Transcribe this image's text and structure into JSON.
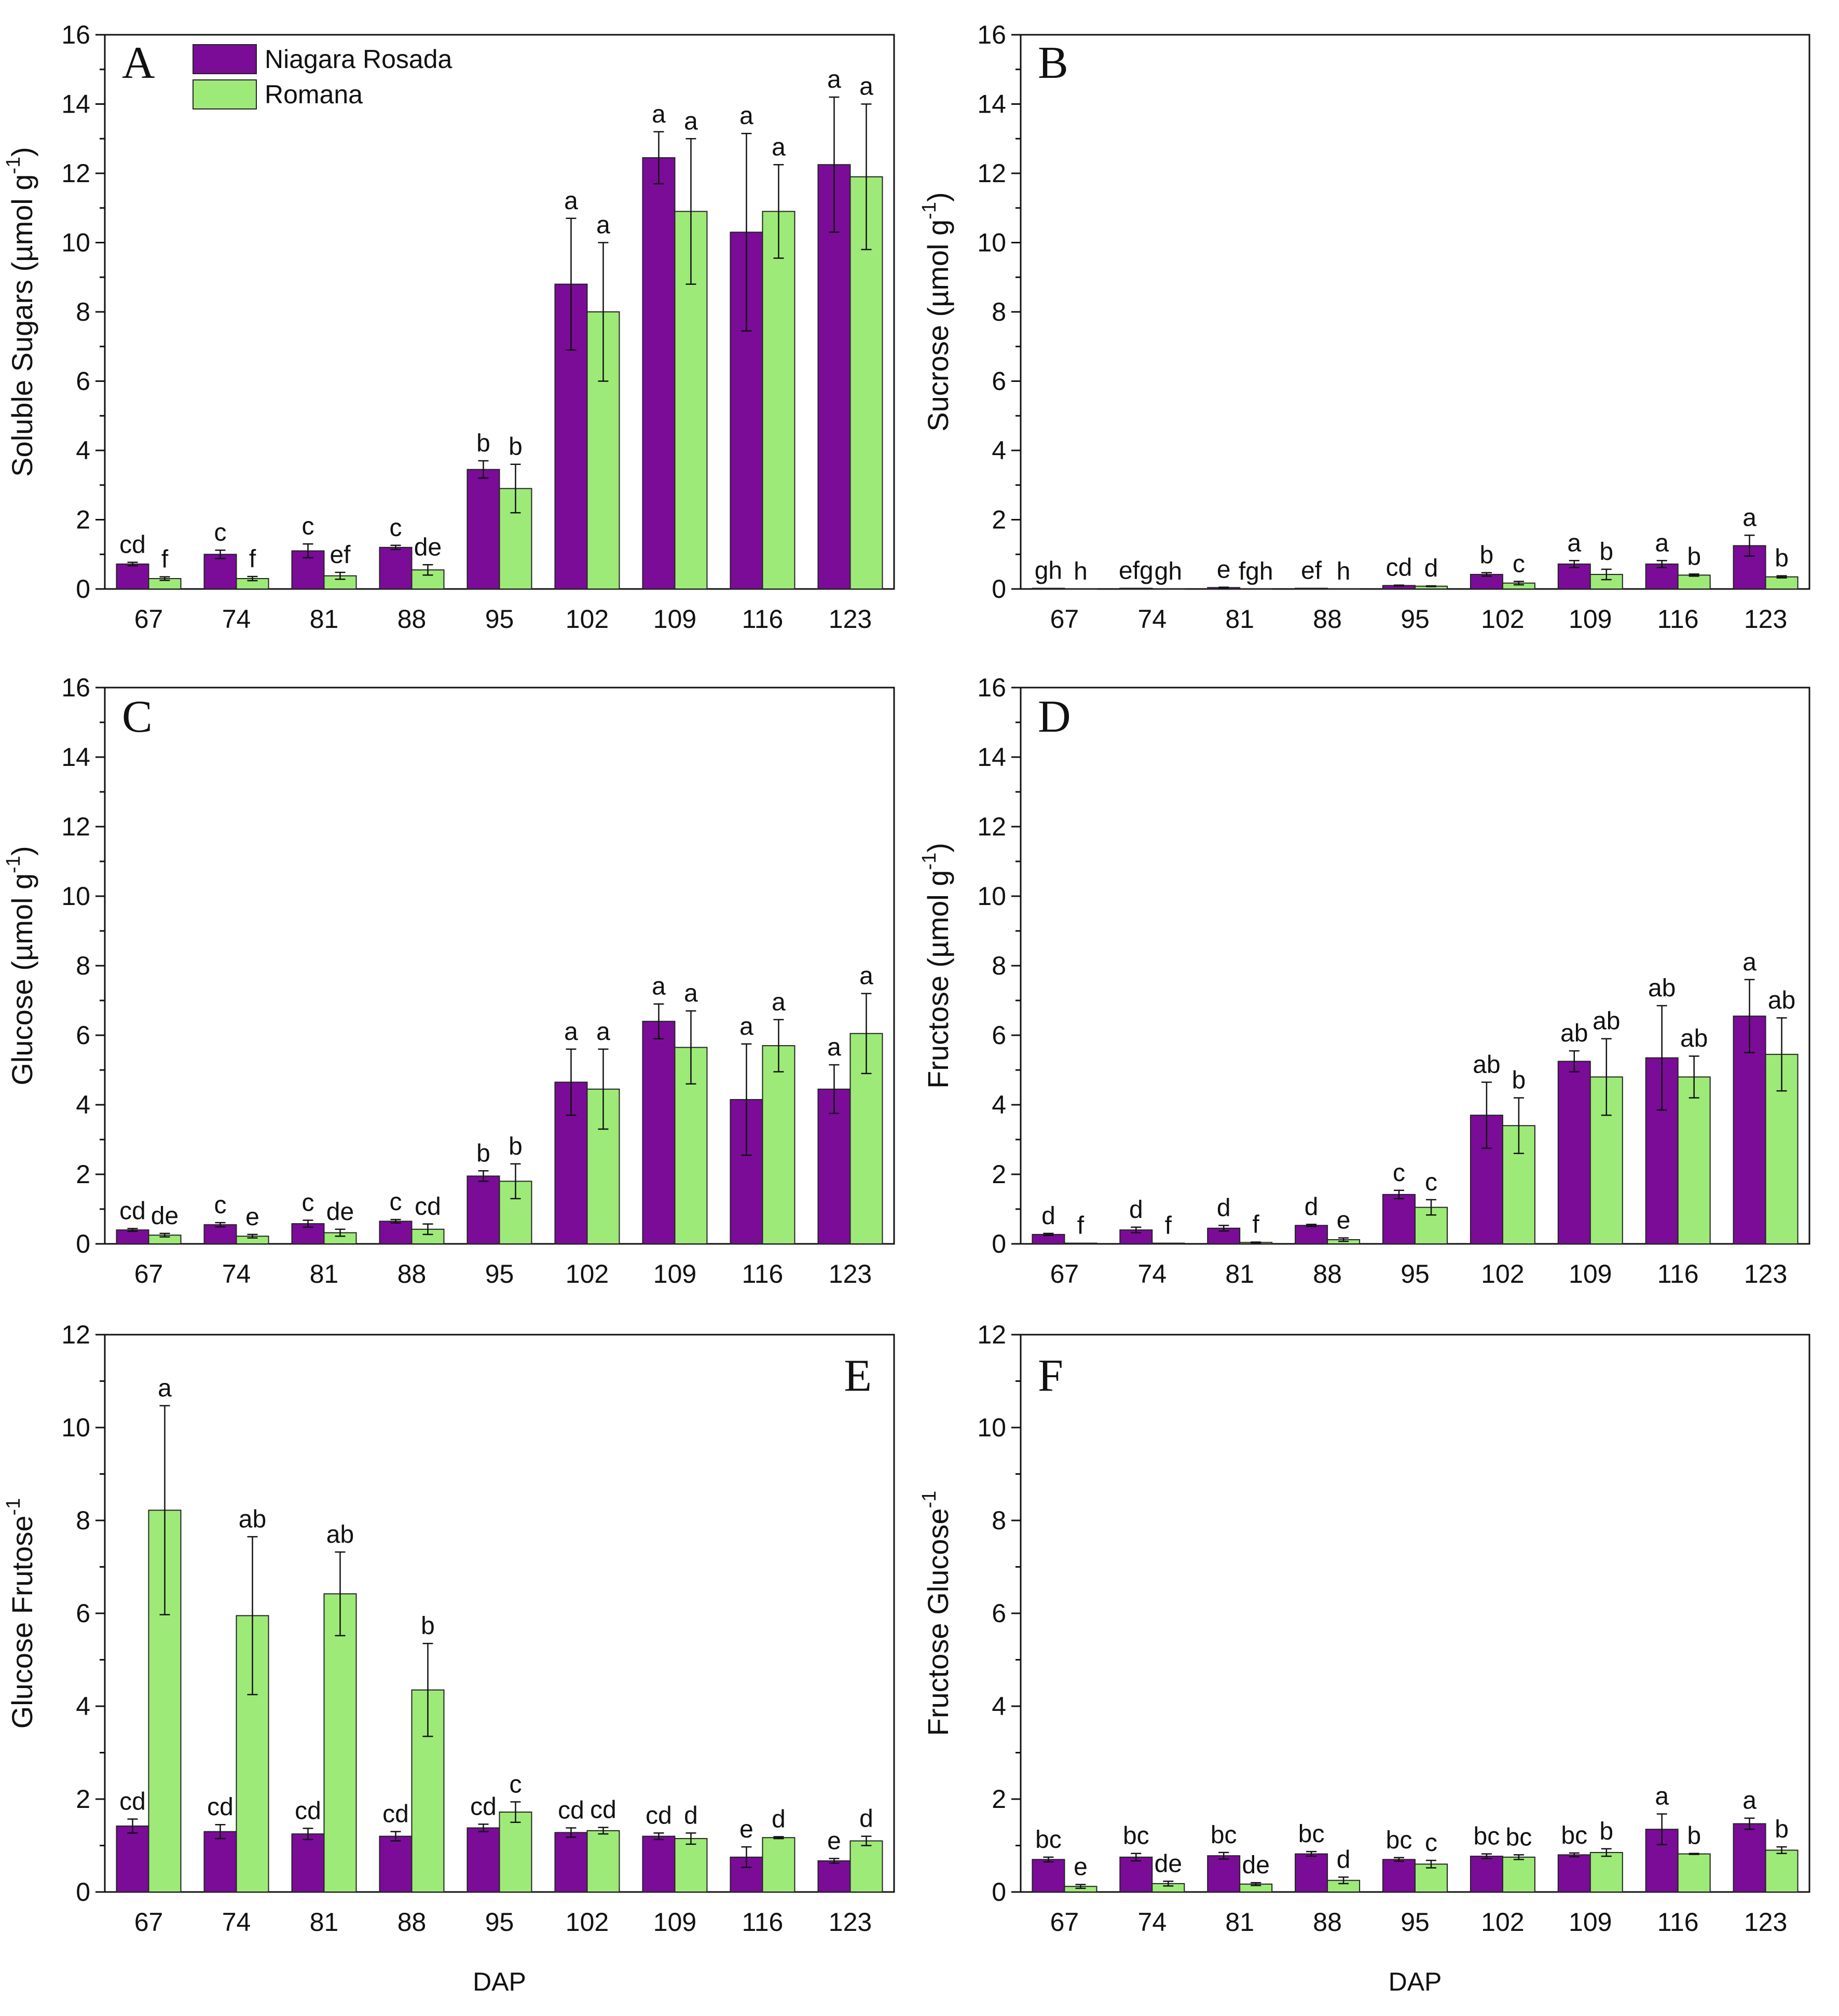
{
  "colors": {
    "Niagara Rosada": "#7A0C98",
    "Romana": "#9EEA78"
  },
  "legend": [
    "Niagara Rosada",
    "Romana"
  ],
  "chart_data": [
    {
      "panel": "A",
      "type": "bar",
      "ylabel": "Soluble Sugars (µmol g",
      "ylabel_sup": "-1",
      "ylabel_end": ")",
      "ylim": [
        0,
        16
      ],
      "yticks": [
        0,
        2,
        4,
        6,
        8,
        10,
        12,
        14,
        16
      ],
      "xlabel": "",
      "categories": [
        "67",
        "74",
        "81",
        "88",
        "95",
        "102",
        "109",
        "116",
        "123"
      ],
      "series": [
        {
          "name": "Niagara Rosada",
          "values": [
            0.72,
            1.0,
            1.1,
            1.2,
            3.45,
            8.8,
            12.45,
            10.3,
            12.25
          ],
          "errors": [
            0.05,
            0.12,
            0.2,
            0.06,
            0.25,
            1.9,
            0.75,
            2.85,
            1.95
          ],
          "letters": [
            "cd",
            "c",
            "c",
            "c",
            "b",
            "a",
            "a",
            "a",
            "a"
          ]
        },
        {
          "name": "Romana",
          "values": [
            0.3,
            0.3,
            0.38,
            0.55,
            2.9,
            8.0,
            10.9,
            10.9,
            11.9
          ],
          "errors": [
            0.05,
            0.06,
            0.1,
            0.15,
            0.7,
            2.0,
            2.1,
            1.35,
            2.1
          ],
          "letters": [
            "f",
            "f",
            "ef",
            "de",
            "b",
            "a",
            "a",
            "a",
            "a"
          ]
        }
      ]
    },
    {
      "panel": "B",
      "type": "bar",
      "ylabel": "Sucrose (µmol g",
      "ylabel_sup": "-1",
      "ylabel_end": ")",
      "ylim": [
        0,
        16
      ],
      "yticks": [
        0,
        2,
        4,
        6,
        8,
        10,
        12,
        14,
        16
      ],
      "xlabel": "",
      "categories": [
        "67",
        "74",
        "81",
        "88",
        "95",
        "102",
        "109",
        "116",
        "123"
      ],
      "series": [
        {
          "name": "Niagara Rosada",
          "values": [
            0.02,
            0.02,
            0.04,
            0.02,
            0.1,
            0.42,
            0.72,
            0.72,
            1.25
          ],
          "errors": [
            0,
            0,
            0.01,
            0,
            0.01,
            0.05,
            0.1,
            0.1,
            0.3
          ],
          "letters": [
            "gh",
            "efg",
            "e",
            "ef",
            "cd",
            "b",
            "a",
            "a",
            "a"
          ]
        },
        {
          "name": "Romana",
          "values": [
            0.0,
            0.0,
            0.0,
            0.0,
            0.08,
            0.17,
            0.42,
            0.4,
            0.35
          ],
          "errors": [
            0,
            0,
            0,
            0,
            0.01,
            0.05,
            0.15,
            0.03,
            0.03
          ],
          "letters": [
            "h",
            "gh",
            "fgh",
            "h",
            "d",
            "c",
            "b",
            "b",
            "b"
          ]
        }
      ]
    },
    {
      "panel": "C",
      "type": "bar",
      "ylabel": "Glucose (µmol g",
      "ylabel_sup": "-1",
      "ylabel_end": ")",
      "ylim": [
        0,
        16
      ],
      "yticks": [
        0,
        2,
        4,
        6,
        8,
        10,
        12,
        14,
        16
      ],
      "xlabel": "",
      "categories": [
        "67",
        "74",
        "81",
        "88",
        "95",
        "102",
        "109",
        "116",
        "123"
      ],
      "series": [
        {
          "name": "Niagara Rosada",
          "values": [
            0.4,
            0.55,
            0.58,
            0.65,
            1.95,
            4.65,
            6.4,
            4.15,
            4.45
          ],
          "errors": [
            0.04,
            0.06,
            0.1,
            0.05,
            0.15,
            0.95,
            0.5,
            1.6,
            0.7
          ],
          "letters": [
            "cd",
            "c",
            "c",
            "c",
            "b",
            "a",
            "a",
            "a",
            "a"
          ]
        },
        {
          "name": "Romana",
          "values": [
            0.25,
            0.22,
            0.32,
            0.42,
            1.8,
            4.45,
            5.65,
            5.7,
            6.05
          ],
          "errors": [
            0.05,
            0.05,
            0.1,
            0.15,
            0.5,
            1.15,
            1.05,
            0.75,
            1.15
          ],
          "letters": [
            "de",
            "e",
            "de",
            "cd",
            "b",
            "a",
            "a",
            "a",
            "a"
          ]
        }
      ]
    },
    {
      "panel": "D",
      "type": "bar",
      "ylabel": "Fructose (µmol g",
      "ylabel_sup": "-1",
      "ylabel_end": ")",
      "ylim": [
        0,
        16
      ],
      "yticks": [
        0,
        2,
        4,
        6,
        8,
        10,
        12,
        14,
        16
      ],
      "xlabel": "",
      "categories": [
        "67",
        "74",
        "81",
        "88",
        "95",
        "102",
        "109",
        "116",
        "123"
      ],
      "series": [
        {
          "name": "Niagara Rosada",
          "values": [
            0.27,
            0.4,
            0.45,
            0.53,
            1.42,
            3.7,
            5.25,
            5.35,
            6.55
          ],
          "errors": [
            0.03,
            0.08,
            0.08,
            0.03,
            0.12,
            0.95,
            0.3,
            1.5,
            1.05
          ],
          "letters": [
            "d",
            "d",
            "d",
            "d",
            "c",
            "ab",
            "ab",
            "ab",
            "a"
          ]
        },
        {
          "name": "Romana",
          "values": [
            0.02,
            0.02,
            0.04,
            0.12,
            1.05,
            3.4,
            4.8,
            4.8,
            5.45
          ],
          "errors": [
            0,
            0,
            0.01,
            0.05,
            0.22,
            0.8,
            1.1,
            0.6,
            1.05
          ],
          "letters": [
            "f",
            "f",
            "f",
            "e",
            "c",
            "b",
            "ab",
            "ab",
            "ab"
          ]
        }
      ]
    },
    {
      "panel": "E",
      "type": "bar",
      "ylabel": "Glucose Frutose",
      "ylabel_sup": "-1",
      "ylabel_end": "",
      "ylim": [
        0,
        12
      ],
      "yticks": [
        0,
        2,
        4,
        6,
        8,
        10,
        12
      ],
      "xlabel": "DAP",
      "categories": [
        "67",
        "74",
        "81",
        "88",
        "95",
        "102",
        "109",
        "116",
        "123"
      ],
      "series": [
        {
          "name": "Niagara Rosada",
          "values": [
            1.42,
            1.3,
            1.25,
            1.2,
            1.38,
            1.28,
            1.2,
            0.75,
            0.67
          ],
          "errors": [
            0.15,
            0.15,
            0.12,
            0.1,
            0.08,
            0.1,
            0.07,
            0.22,
            0.05
          ],
          "letters": [
            "cd",
            "cd",
            "cd",
            "cd",
            "cd",
            "cd",
            "cd",
            "e",
            "e"
          ]
        },
        {
          "name": "Romana",
          "values": [
            8.22,
            5.95,
            6.42,
            4.35,
            1.72,
            1.32,
            1.15,
            1.17,
            1.1
          ],
          "errors": [
            2.25,
            1.7,
            0.9,
            1.0,
            0.22,
            0.07,
            0.12,
            0.02,
            0.1
          ],
          "letters": [
            "a",
            "ab",
            "ab",
            "b",
            "c",
            "cd",
            "d",
            "d",
            "d"
          ]
        }
      ]
    },
    {
      "panel": "F",
      "type": "bar",
      "ylabel": "Fructose Glucose",
      "ylabel_sup": "-1",
      "ylabel_end": "",
      "ylim": [
        0,
        12
      ],
      "yticks": [
        0,
        2,
        4,
        6,
        8,
        10,
        12
      ],
      "xlabel": "DAP",
      "categories": [
        "67",
        "74",
        "81",
        "88",
        "95",
        "102",
        "109",
        "116",
        "123"
      ],
      "series": [
        {
          "name": "Niagara Rosada",
          "values": [
            0.7,
            0.75,
            0.78,
            0.82,
            0.7,
            0.77,
            0.8,
            1.35,
            1.47
          ],
          "errors": [
            0.05,
            0.08,
            0.07,
            0.05,
            0.04,
            0.05,
            0.04,
            0.33,
            0.12
          ],
          "letters": [
            "bc",
            "bc",
            "bc",
            "bc",
            "bc",
            "bc",
            "bc",
            "a",
            "a"
          ]
        },
        {
          "name": "Romana",
          "values": [
            0.12,
            0.18,
            0.17,
            0.25,
            0.6,
            0.75,
            0.85,
            0.82,
            0.9
          ],
          "errors": [
            0.04,
            0.05,
            0.03,
            0.07,
            0.08,
            0.05,
            0.08,
            0.01,
            0.07
          ],
          "letters": [
            "e",
            "de",
            "de",
            "d",
            "c",
            "bc",
            "b",
            "b",
            "b"
          ]
        }
      ]
    }
  ]
}
